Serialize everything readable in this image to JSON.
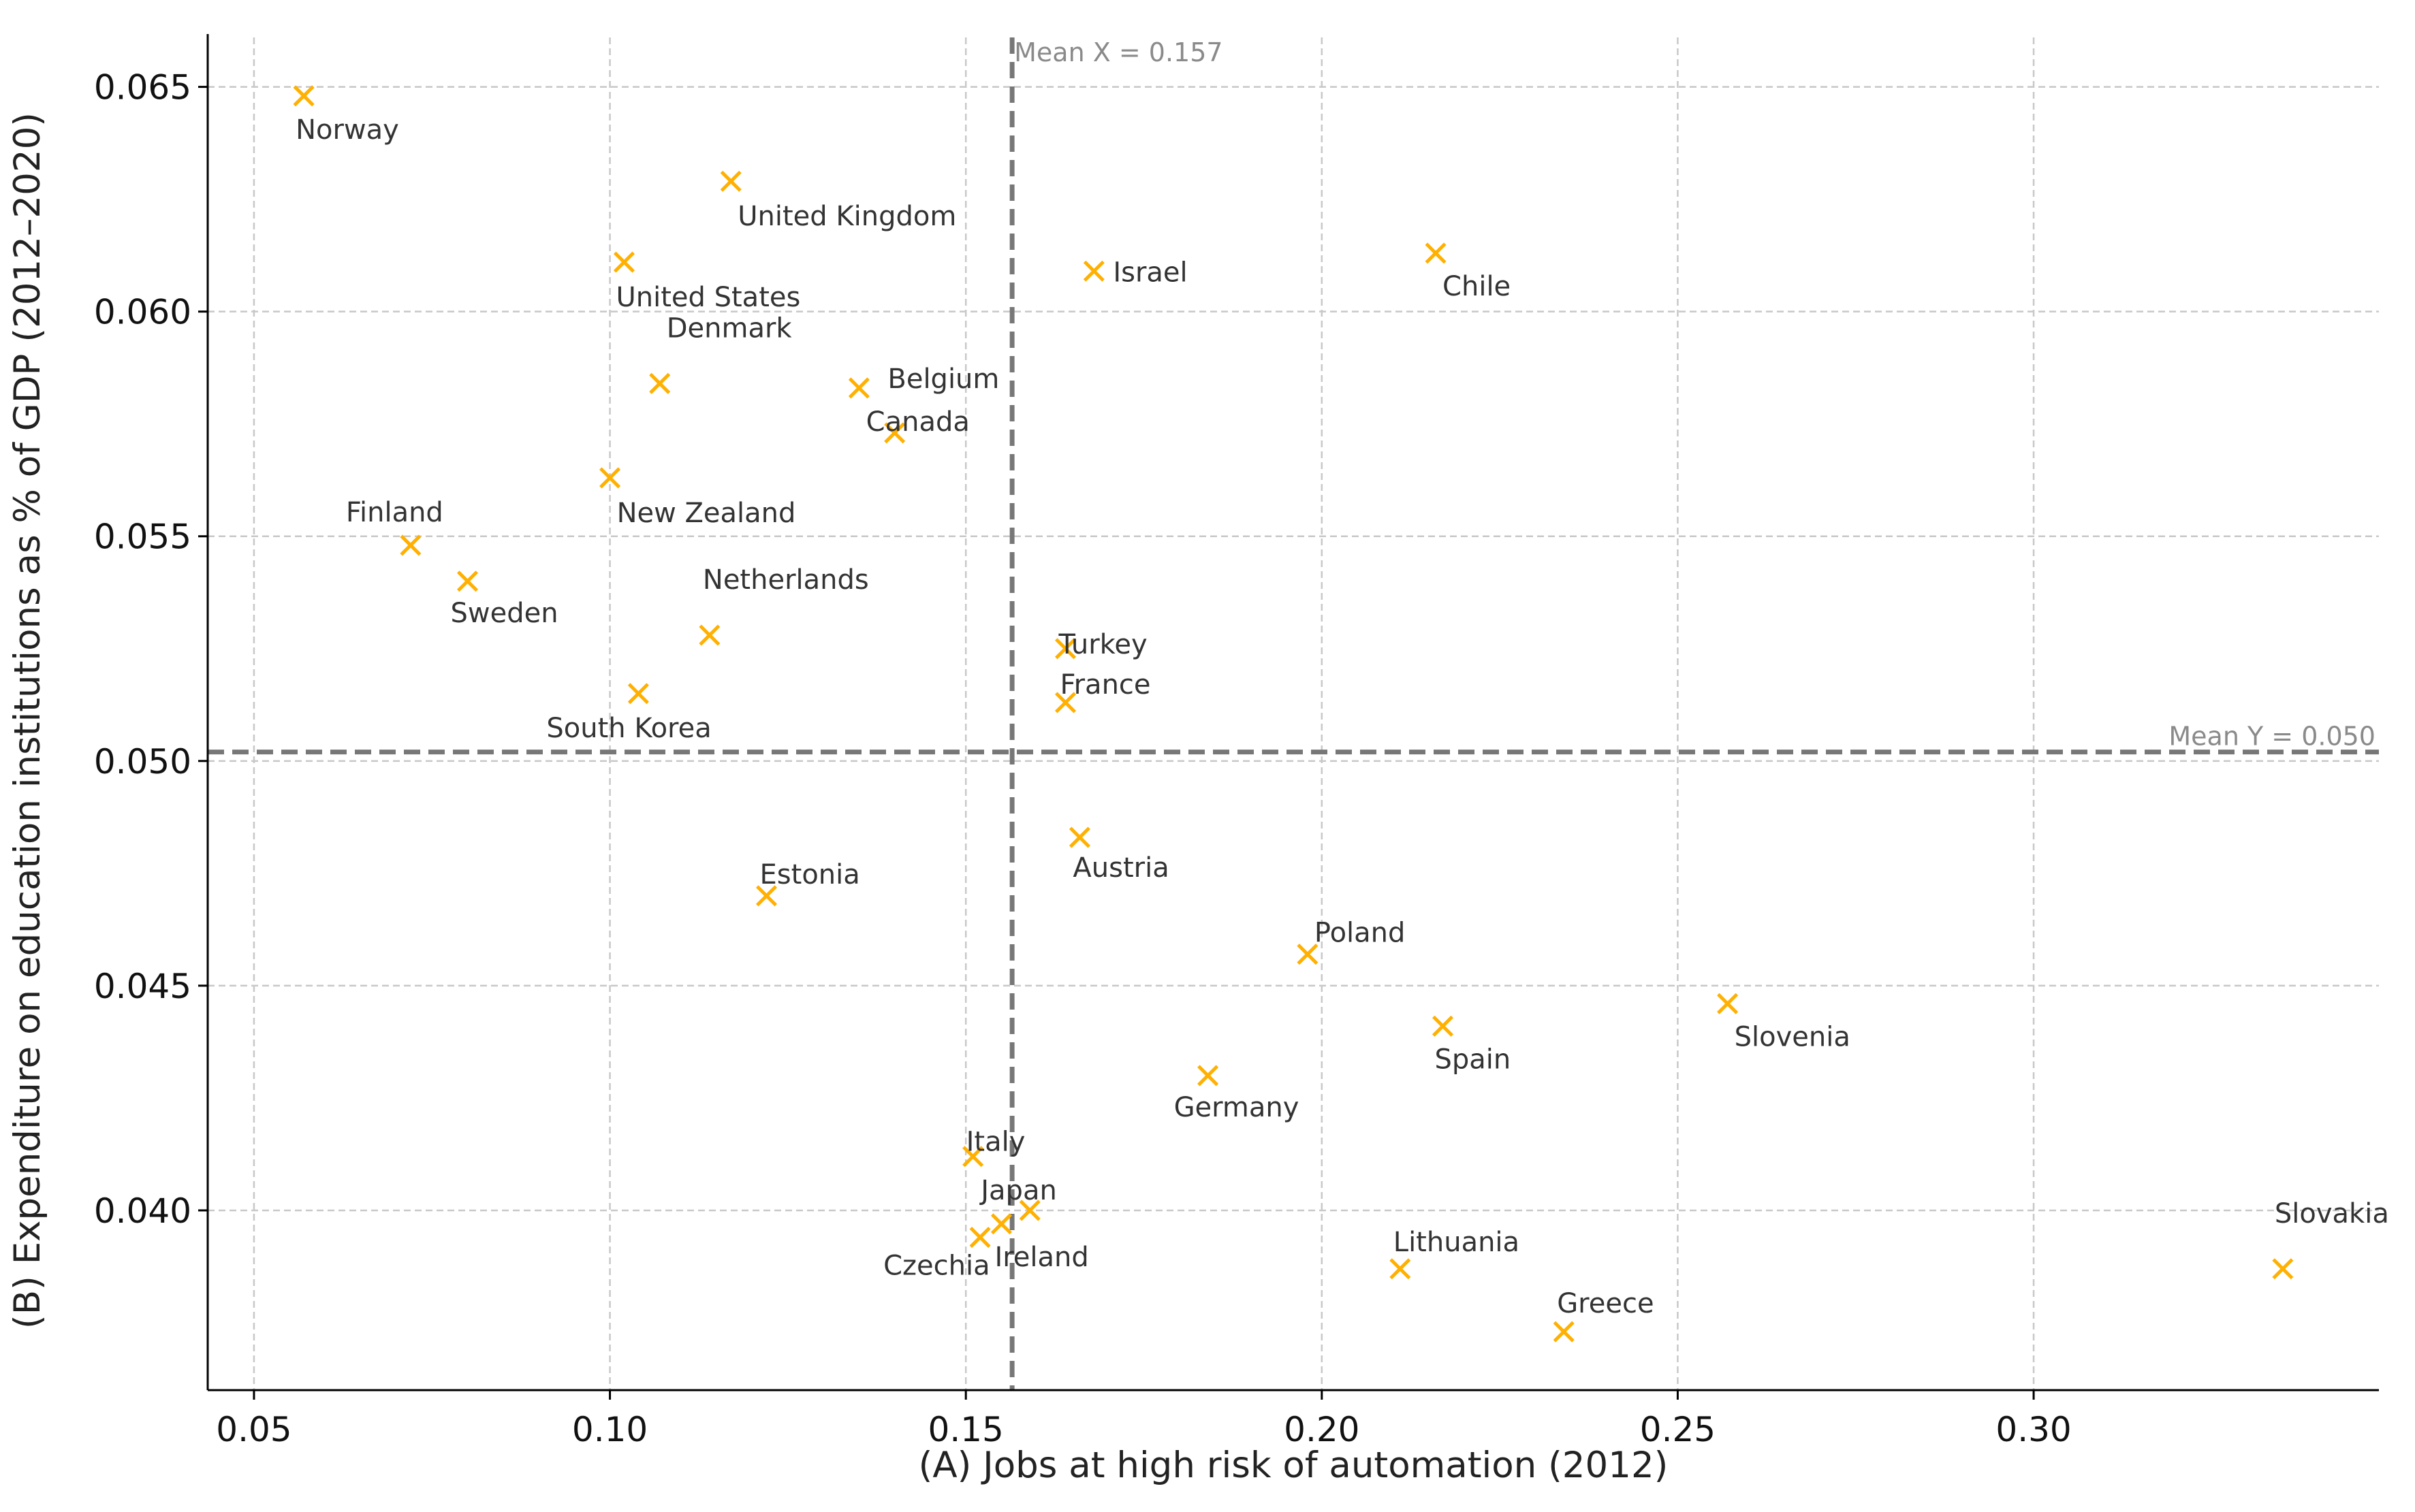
{
  "chart_data": {
    "type": "scatter",
    "title": "",
    "xlabel": "(A) Jobs at high risk of automation (2012)",
    "ylabel": "(B) Expenditure on education institutions as % of GDP (2012–2020)",
    "xlim": [
      0.0435,
      0.3485
    ],
    "ylim": [
      0.036,
      0.0661
    ],
    "grid": true,
    "marker": "x",
    "marker_color": "#FFB000",
    "x_ticks": [
      0.05,
      0.1,
      0.15,
      0.2,
      0.25,
      0.3
    ],
    "x_tick_labels": [
      "0.05",
      "0.10",
      "0.15",
      "0.20",
      "0.25",
      "0.30"
    ],
    "y_ticks": [
      0.04,
      0.045,
      0.05,
      0.055,
      0.06,
      0.065
    ],
    "y_tick_labels": [
      "0.040",
      "0.045",
      "0.050",
      "0.055",
      "0.060",
      "0.065"
    ],
    "mean_x": {
      "value": 0.1565,
      "label": "Mean X = 0.157"
    },
    "mean_y": {
      "value": 0.0502,
      "label": "Mean Y = 0.050"
    },
    "points": [
      {
        "label": "Norway",
        "x": 0.057,
        "y": 0.0648
      },
      {
        "label": "United Kingdom",
        "x": 0.117,
        "y": 0.0629
      },
      {
        "label": "United States",
        "x": 0.102,
        "y": 0.0611
      },
      {
        "label": "Denmark",
        "x": 0.107,
        "y": 0.0584
      },
      {
        "label": "Belgium",
        "x": 0.135,
        "y": 0.0583
      },
      {
        "label": "Canada",
        "x": 0.14,
        "y": 0.0573
      },
      {
        "label": "Israel",
        "x": 0.168,
        "y": 0.0609
      },
      {
        "label": "Chile",
        "x": 0.216,
        "y": 0.0613
      },
      {
        "label": "New Zealand",
        "x": 0.1,
        "y": 0.0563
      },
      {
        "label": "Finland",
        "x": 0.072,
        "y": 0.0548
      },
      {
        "label": "Sweden",
        "x": 0.08,
        "y": 0.054
      },
      {
        "label": "Netherlands",
        "x": 0.114,
        "y": 0.0528
      },
      {
        "label": "South Korea",
        "x": 0.104,
        "y": 0.0515
      },
      {
        "label": "Turkey",
        "x": 0.164,
        "y": 0.0525
      },
      {
        "label": "France",
        "x": 0.164,
        "y": 0.0513
      },
      {
        "label": "Austria",
        "x": 0.166,
        "y": 0.0483
      },
      {
        "label": "Estonia",
        "x": 0.122,
        "y": 0.047
      },
      {
        "label": "Poland",
        "x": 0.198,
        "y": 0.0457
      },
      {
        "label": "Spain",
        "x": 0.217,
        "y": 0.0441
      },
      {
        "label": "Slovenia",
        "x": 0.257,
        "y": 0.0446
      },
      {
        "label": "Germany",
        "x": 0.184,
        "y": 0.043
      },
      {
        "label": "Italy",
        "x": 0.151,
        "y": 0.0412
      },
      {
        "label": "Japan",
        "x": 0.159,
        "y": 0.04
      },
      {
        "label": "Ireland",
        "x": 0.155,
        "y": 0.0397
      },
      {
        "label": "Czechia",
        "x": 0.152,
        "y": 0.0394
      },
      {
        "label": "Lithuania",
        "x": 0.211,
        "y": 0.0387
      },
      {
        "label": "Greece",
        "x": 0.234,
        "y": 0.0373
      },
      {
        "label": "Slovakia",
        "x": 0.335,
        "y": 0.0387
      }
    ]
  }
}
